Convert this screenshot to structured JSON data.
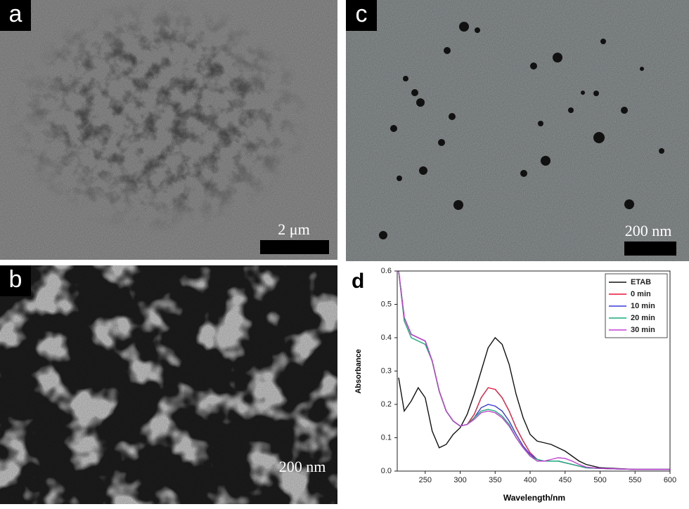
{
  "panels": [
    {
      "label": "a",
      "scale_bar": "2 μm"
    },
    {
      "label": "b",
      "scale_bar": "200 nm"
    },
    {
      "label": "c",
      "scale_bar": "200 nm"
    }
  ],
  "chart_data": {
    "type": "line",
    "panel_label": "d",
    "x_label": "Wavelength/nm",
    "y_label": "Absorbance",
    "x": [
      212,
      220,
      230,
      240,
      250,
      260,
      270,
      280,
      290,
      300,
      310,
      320,
      330,
      340,
      350,
      360,
      370,
      380,
      390,
      400,
      410,
      420,
      430,
      440,
      450,
      460,
      470,
      480,
      500,
      550,
      600
    ],
    "series": [
      {
        "name": "ETAB",
        "color": "#111111",
        "values": [
          0.28,
          0.18,
          0.21,
          0.25,
          0.22,
          0.12,
          0.07,
          0.08,
          0.11,
          0.13,
          0.17,
          0.23,
          0.3,
          0.37,
          0.4,
          0.38,
          0.32,
          0.23,
          0.16,
          0.11,
          0.09,
          0.085,
          0.08,
          0.07,
          0.06,
          0.045,
          0.03,
          0.02,
          0.01,
          0.005,
          0.005
        ]
      },
      {
        "name": "0 min",
        "color": "#e8173c",
        "values": [
          0.6,
          0.46,
          0.41,
          0.4,
          0.39,
          0.33,
          0.24,
          0.18,
          0.15,
          0.135,
          0.14,
          0.17,
          0.22,
          0.25,
          0.245,
          0.22,
          0.18,
          0.13,
          0.09,
          0.055,
          0.035,
          0.03,
          0.03,
          0.03,
          0.025,
          0.02,
          0.015,
          0.01,
          0.008,
          0.005,
          0.005
        ]
      },
      {
        "name": "10 min",
        "color": "#3a3ad8",
        "values": [
          0.6,
          0.46,
          0.41,
          0.4,
          0.39,
          0.33,
          0.24,
          0.18,
          0.15,
          0.135,
          0.14,
          0.16,
          0.19,
          0.2,
          0.195,
          0.18,
          0.15,
          0.11,
          0.075,
          0.05,
          0.035,
          0.03,
          0.03,
          0.03,
          0.025,
          0.02,
          0.015,
          0.01,
          0.008,
          0.005,
          0.005
        ]
      },
      {
        "name": "20 min",
        "color": "#1aab7a",
        "values": [
          0.6,
          0.45,
          0.4,
          0.39,
          0.38,
          0.33,
          0.24,
          0.18,
          0.15,
          0.135,
          0.14,
          0.16,
          0.18,
          0.185,
          0.18,
          0.165,
          0.14,
          0.1,
          0.07,
          0.045,
          0.035,
          0.03,
          0.03,
          0.03,
          0.025,
          0.02,
          0.015,
          0.01,
          0.008,
          0.005,
          0.005
        ]
      },
      {
        "name": "30 min",
        "color": "#c040d0",
        "values": [
          0.6,
          0.46,
          0.41,
          0.4,
          0.39,
          0.33,
          0.24,
          0.18,
          0.15,
          0.135,
          0.14,
          0.155,
          0.175,
          0.18,
          0.175,
          0.16,
          0.135,
          0.1,
          0.07,
          0.045,
          0.03,
          0.03,
          0.035,
          0.04,
          0.038,
          0.03,
          0.02,
          0.012,
          0.008,
          0.005,
          0.005
        ]
      }
    ],
    "xlim": [
      210,
      600
    ],
    "xticks": [
      250,
      300,
      350,
      400,
      450,
      500,
      550,
      600
    ],
    "ylim": [
      0,
      0.6
    ],
    "yticks": [
      {
        "value": 0,
        "label": "0.0"
      },
      0.1,
      0.2,
      0.3,
      0.4,
      0.5,
      0.6
    ],
    "legend": "top-right"
  }
}
